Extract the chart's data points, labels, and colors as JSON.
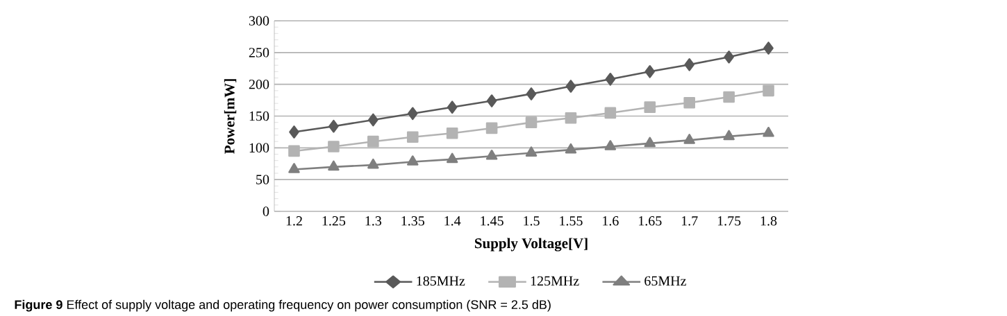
{
  "chart_data": {
    "type": "line",
    "xlabel": "Supply  Voltage[V]",
    "ylabel": "Power[mW]",
    "categories": [
      "1.2",
      "1.25",
      "1.3",
      "1.35",
      "1.4",
      "1.45",
      "1.5",
      "1.55",
      "1.6",
      "1.65",
      "1.7",
      "1.75",
      "1.8"
    ],
    "series": [
      {
        "name": "185MHz",
        "color": "#595959",
        "marker": "diamond",
        "values": [
          125,
          134,
          144,
          154,
          164,
          174,
          185,
          197,
          208,
          220,
          231,
          243,
          257
        ]
      },
      {
        "name": "125MHz",
        "color": "#b3b3b3",
        "marker": "square",
        "values": [
          95,
          102,
          110,
          117,
          123,
          131,
          140,
          147,
          155,
          164,
          171,
          180,
          190
        ]
      },
      {
        "name": "65MHz",
        "color": "#7f7f7f",
        "marker": "triangle",
        "values": [
          66,
          70,
          73,
          78,
          82,
          87,
          92,
          97,
          102,
          107,
          112,
          118,
          123
        ]
      }
    ],
    "ylim": [
      0,
      300
    ],
    "yticks": [
      0,
      50,
      100,
      150,
      200,
      250,
      300
    ],
    "grid": "y",
    "legend": "bottom",
    "annotations": [
      "**Figure 9** Effect of supply voltage and operating frequency on power consumption (SNR = 2.5 dB)"
    ]
  }
}
